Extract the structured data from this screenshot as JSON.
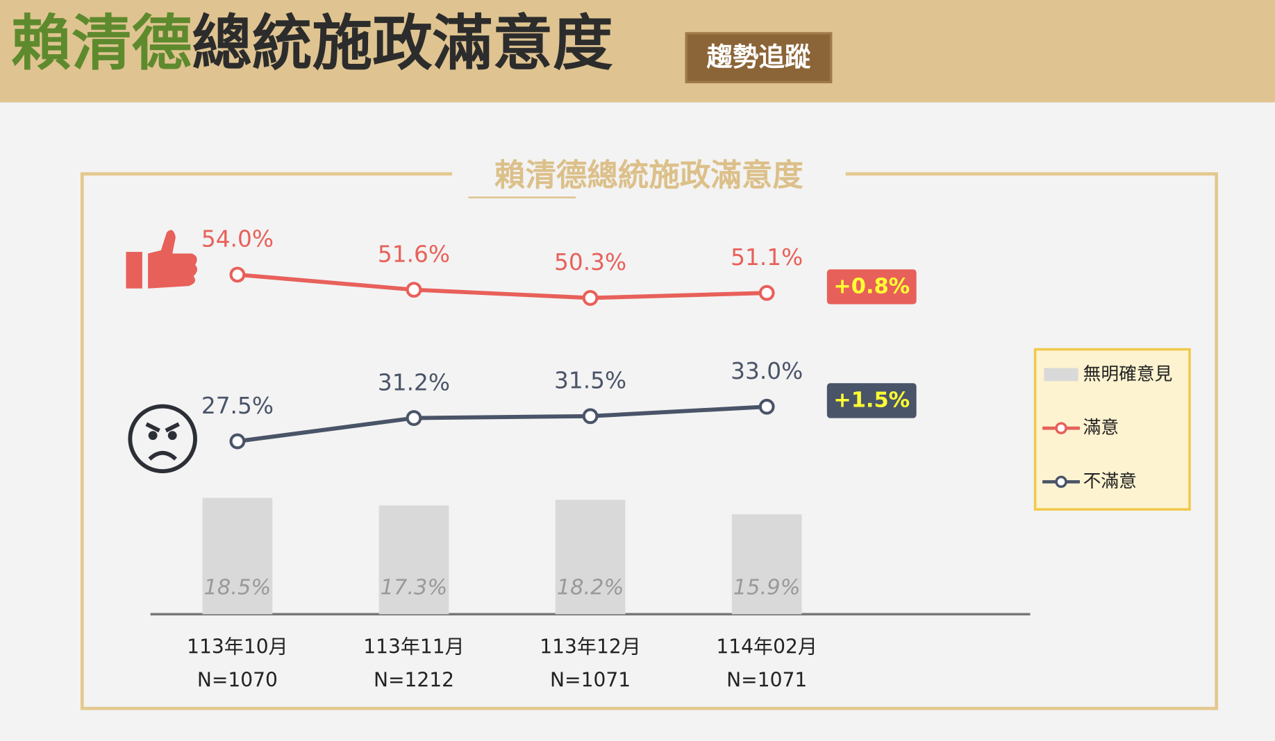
{
  "header": {
    "title_highlight": "賴清德",
    "title_rest": "總統施政滿意度",
    "badge": "趨勢追蹤"
  },
  "chart_data": {
    "type": "line",
    "title": "賴清德總統施政滿意度",
    "categories": [
      "113年10月",
      "113年11月",
      "113年12月",
      "114年02月"
    ],
    "sample_sizes": [
      "N=1070",
      "N=1212",
      "N=1071",
      "N=1071"
    ],
    "ylim": [
      0,
      60
    ],
    "series": [
      {
        "name": "無明確意見",
        "type": "bar",
        "color": "#d9d9d9",
        "values": [
          18.5,
          17.3,
          18.2,
          15.9
        ],
        "value_labels": [
          "18.5%",
          "17.3%",
          "18.2%",
          "15.9%"
        ]
      },
      {
        "name": "滿意",
        "type": "line",
        "color": "#e8605a",
        "values": [
          54.0,
          51.6,
          50.3,
          51.1
        ],
        "value_labels": [
          "54.0%",
          "51.6%",
          "50.3%",
          "51.1%"
        ],
        "change_label": "+0.8%"
      },
      {
        "name": "不滿意",
        "type": "line",
        "color": "#4a5468",
        "values": [
          27.5,
          31.2,
          31.5,
          33.0
        ],
        "value_labels": [
          "27.5%",
          "31.2%",
          "31.5%",
          "33.0%"
        ],
        "change_label": "+1.5%"
      }
    ]
  }
}
